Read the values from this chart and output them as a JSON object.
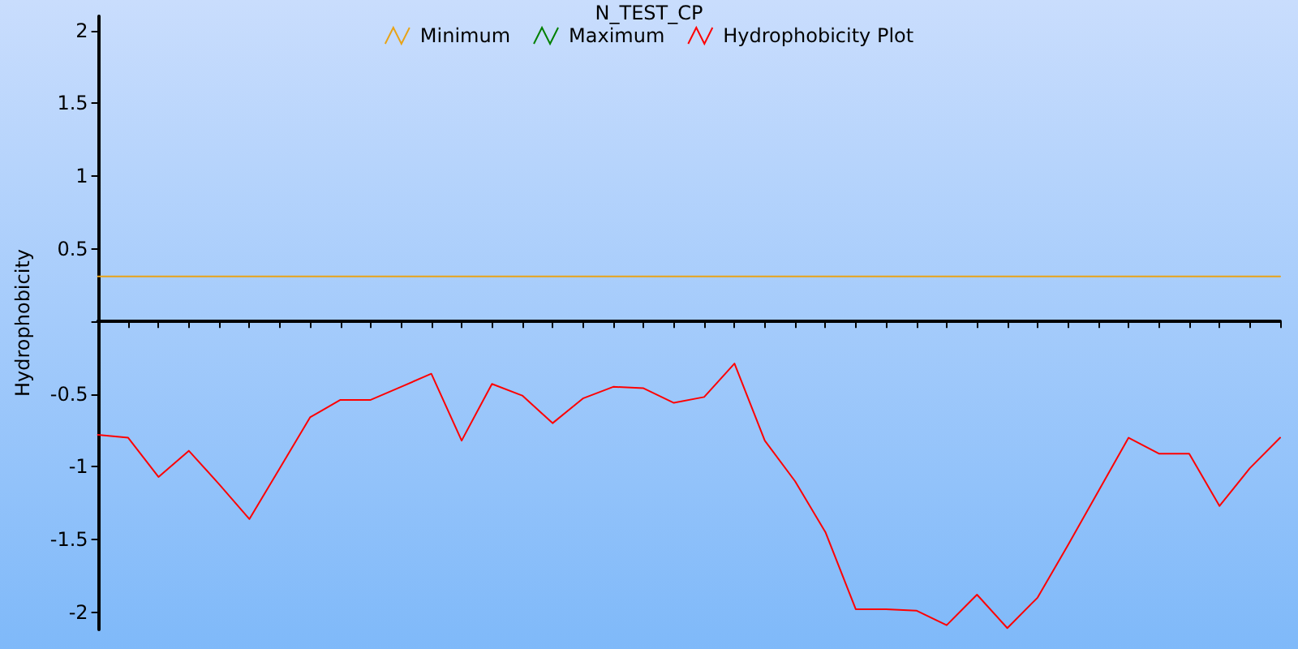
{
  "chart_data": {
    "type": "line",
    "title": "N_TEST_CP",
    "ylabel": "Hydrophobicity",
    "categories": [
      null,
      null,
      null,
      null,
      null,
      null,
      null,
      null,
      null,
      null,
      null,
      null,
      null,
      null,
      null,
      null,
      null,
      null,
      null,
      null,
      null,
      null,
      null,
      null,
      null,
      null,
      null,
      null,
      null,
      null,
      null,
      null,
      null,
      null,
      null,
      null,
      null,
      null,
      null,
      null
    ],
    "series": [
      {
        "name": "Minimum",
        "color": "#e8a317",
        "values": [
          0.31,
          0.31,
          0.31,
          0.31,
          0.31,
          0.31,
          0.31,
          0.31,
          0.31,
          0.31,
          0.31,
          0.31,
          0.31,
          0.31,
          0.31,
          0.31,
          0.31,
          0.31,
          0.31,
          0.31,
          0.31,
          0.31,
          0.31,
          0.31,
          0.31,
          0.31,
          0.31,
          0.31,
          0.31,
          0.31,
          0.31,
          0.31,
          0.31,
          0.31,
          0.31,
          0.31,
          0.31,
          0.31,
          0.31,
          0.31
        ]
      },
      {
        "name": "Maximum",
        "color": "#008000",
        "values": [
          null,
          null,
          null,
          null,
          null,
          null,
          null,
          null,
          null,
          null,
          null,
          null,
          null,
          null,
          null,
          null,
          null,
          null,
          null,
          null,
          null,
          null,
          null,
          null,
          null,
          null,
          null,
          null,
          null,
          null,
          null,
          null,
          null,
          null,
          null,
          null,
          null,
          null,
          null,
          null
        ]
      },
      {
        "name": "Hydrophobicity Plot",
        "color": "#ff0000",
        "values": [
          -0.78,
          -0.8,
          -1.07,
          -0.89,
          -1.12,
          -1.36,
          -1.01,
          -0.66,
          -0.54,
          -0.54,
          -0.45,
          -0.36,
          -0.82,
          -0.43,
          -0.51,
          -0.7,
          -0.53,
          -0.45,
          -0.46,
          -0.56,
          -0.52,
          -0.29,
          -0.82,
          -1.1,
          -1.45,
          -1.98,
          -1.98,
          -1.99,
          -2.09,
          -1.88,
          -2.11,
          -1.9,
          -1.54,
          -1.17,
          -0.8,
          -0.91,
          -0.91,
          -1.27,
          -1.01,
          -0.8
        ]
      }
    ],
    "ylim": [
      -2.12,
      2.1
    ],
    "yticks": [
      -2,
      -1.5,
      -1,
      -0.5,
      {
        "value": 0,
        "label": null
      },
      0.5,
      1,
      1.5,
      2
    ],
    "tick_labels": "y",
    "legend": "top",
    "marker": "none",
    "line_style": "solid"
  }
}
